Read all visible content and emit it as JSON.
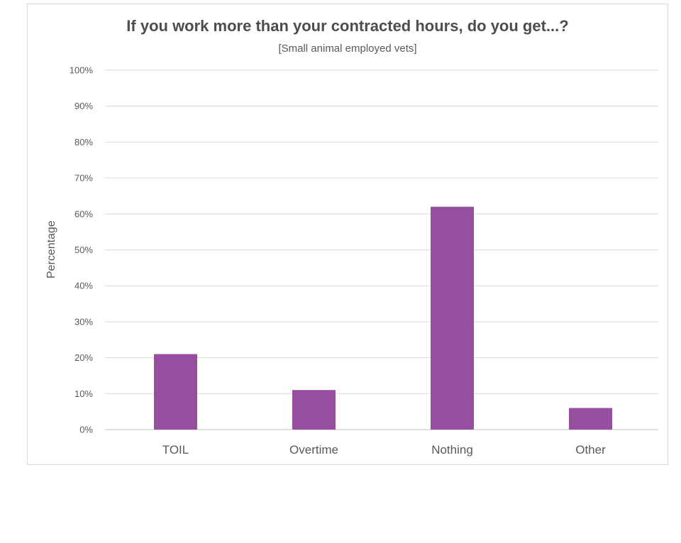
{
  "chart_data": {
    "type": "bar",
    "title": "If you work more than your contracted hours, do you get...?",
    "subtitle": "[Small animal employed vets]",
    "xlabel": "",
    "ylabel": "Percentage",
    "categories": [
      "TOIL",
      "Overtime",
      "Nothing",
      "Other"
    ],
    "values": [
      21,
      11,
      62,
      6
    ],
    "ylim": [
      0,
      100
    ],
    "yticks": [
      0,
      10,
      20,
      30,
      40,
      50,
      60,
      70,
      80,
      90,
      100
    ],
    "ytick_labels": [
      "0%",
      "10%",
      "20%",
      "30%",
      "40%",
      "50%",
      "60%",
      "70%",
      "80%",
      "90%",
      "100%"
    ],
    "grid": true,
    "legend": "none",
    "bar_color": "#954f9e"
  }
}
